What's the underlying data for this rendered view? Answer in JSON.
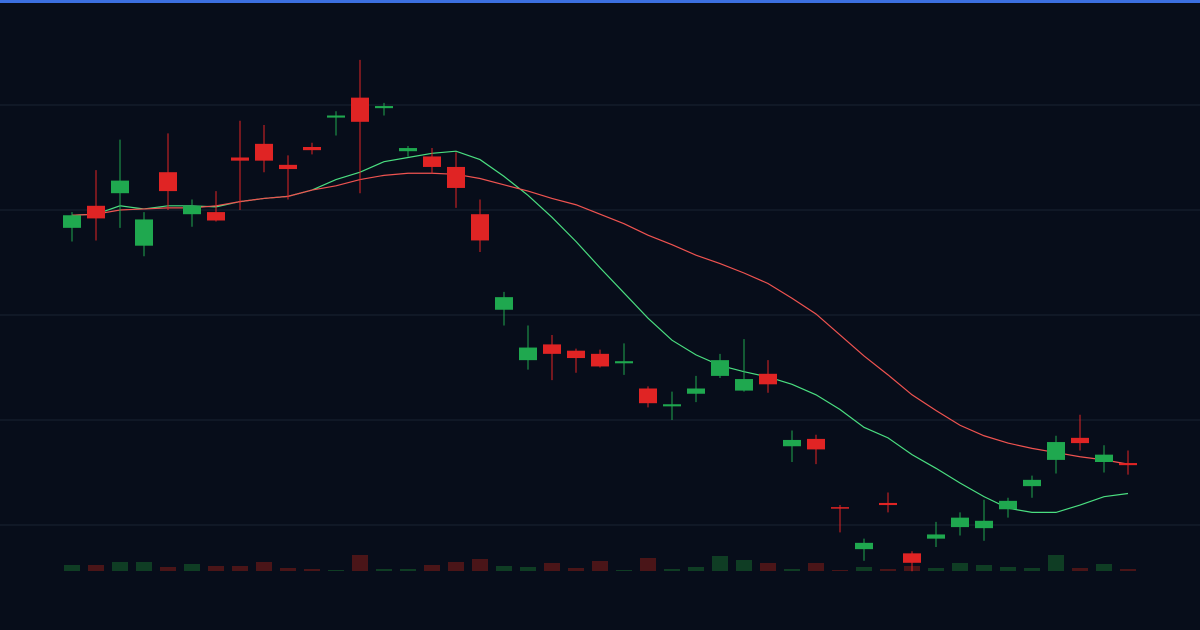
{
  "chart_data": {
    "type": "candlestick",
    "ylim": [
      0,
      60
    ],
    "yticks": [
      10,
      20,
      30,
      40,
      50
    ],
    "grid": true,
    "up_color": "#1fa84f",
    "down_color": "#e02424",
    "open": [
      38.3,
      40.4,
      41.6,
      36.6,
      43.6,
      39.6,
      39.8,
      45.0,
      46.3,
      44.3,
      46.0,
      48.8,
      50.7,
      49.7,
      45.6,
      45.1,
      44.1,
      39.6,
      30.5,
      25.7,
      27.2,
      26.6,
      26.3,
      25.4,
      23.0,
      21.3,
      22.5,
      24.2,
      22.8,
      24.4,
      17.5,
      18.2,
      11.7,
      7.7,
      12.1,
      7.3,
      8.7,
      9.8,
      9.7,
      11.5,
      13.7,
      16.2,
      18.3,
      16.0,
      15.9
    ],
    "high": [
      39.8,
      43.8,
      46.7,
      39.8,
      47.3,
      41.0,
      41.8,
      48.5,
      48.1,
      45.2,
      46.4,
      49.4,
      54.3,
      50.2,
      46.1,
      45.9,
      45.5,
      41.0,
      32.2,
      29.0,
      28.1,
      26.8,
      26.7,
      27.3,
      23.2,
      22.7,
      24.2,
      26.3,
      27.7,
      25.7,
      19.0,
      18.6,
      11.9,
      8.7,
      13.1,
      7.5,
      10.3,
      11.2,
      12.4,
      12.6,
      14.7,
      18.5,
      20.5,
      17.6,
      17.1
    ],
    "low": [
      37.0,
      37.1,
      38.3,
      35.6,
      40.0,
      38.4,
      38.9,
      40.0,
      43.6,
      41.0,
      45.3,
      47.1,
      41.6,
      49.0,
      45.1,
      43.5,
      40.2,
      36.0,
      29.0,
      24.8,
      23.8,
      24.5,
      25.0,
      24.3,
      21.2,
      20.0,
      21.7,
      24.0,
      22.7,
      22.6,
      16.0,
      15.8,
      9.3,
      6.6,
      11.2,
      5.6,
      7.9,
      9.0,
      8.5,
      10.7,
      12.6,
      14.9,
      17.1,
      15.0,
      14.8
    ],
    "close": [
      39.5,
      39.2,
      42.8,
      39.1,
      41.8,
      40.4,
      39.0,
      44.7,
      44.7,
      43.9,
      45.7,
      49.0,
      48.4,
      49.9,
      45.9,
      44.1,
      42.1,
      37.1,
      31.7,
      26.9,
      26.3,
      25.9,
      25.1,
      25.6,
      21.6,
      21.5,
      23.0,
      25.7,
      23.9,
      23.4,
      18.1,
      17.2,
      11.6,
      8.3,
      11.9,
      6.4,
      9.1,
      10.7,
      10.4,
      12.3,
      14.3,
      17.9,
      17.8,
      16.7,
      15.7
    ],
    "volume": [
      6,
      6,
      9,
      9,
      4,
      7,
      5,
      5,
      9,
      3,
      2,
      1,
      16,
      2,
      2,
      6,
      9,
      12,
      5,
      4,
      8,
      3,
      10,
      1,
      13,
      2,
      4,
      15,
      11,
      8,
      2,
      8,
      1,
      4,
      2,
      5,
      3,
      8,
      6,
      4,
      3,
      16,
      3,
      7,
      2
    ],
    "volume_lim": [
      0,
      60
    ],
    "volume_up_color": "#0f3d24",
    "volume_down_color": "#4a1518",
    "series": [
      {
        "color": "#4ade80",
        "values": [
          39.5,
          39.6,
          40.4,
          40.1,
          40.4,
          40.4,
          40.3,
          40.8,
          41.1,
          41.3,
          41.9,
          42.9,
          43.6,
          44.6,
          45.0,
          45.4,
          45.6,
          44.8,
          43.2,
          41.4,
          39.3,
          37.0,
          34.5,
          32.1,
          29.7,
          27.6,
          26.2,
          25.2,
          24.6,
          24.1,
          23.4,
          22.4,
          21.0,
          19.3,
          18.3,
          16.7,
          15.4,
          14.0,
          12.7,
          11.6,
          11.2,
          11.2,
          11.9,
          12.7,
          13.0
        ]
      },
      {
        "color": "#ef5350",
        "values": [
          39.5,
          39.6,
          40.0,
          40.1,
          40.2,
          40.2,
          40.4,
          40.8,
          41.1,
          41.3,
          41.9,
          42.3,
          42.9,
          43.3,
          43.5,
          43.5,
          43.4,
          43.0,
          42.4,
          41.8,
          41.1,
          40.5,
          39.6,
          38.7,
          37.6,
          36.7,
          35.7,
          34.9,
          34.0,
          33.0,
          31.6,
          30.1,
          28.1,
          26.1,
          24.3,
          22.4,
          20.9,
          19.5,
          18.5,
          17.8,
          17.3,
          16.9,
          16.5,
          16.2,
          15.8
        ]
      }
    ]
  }
}
